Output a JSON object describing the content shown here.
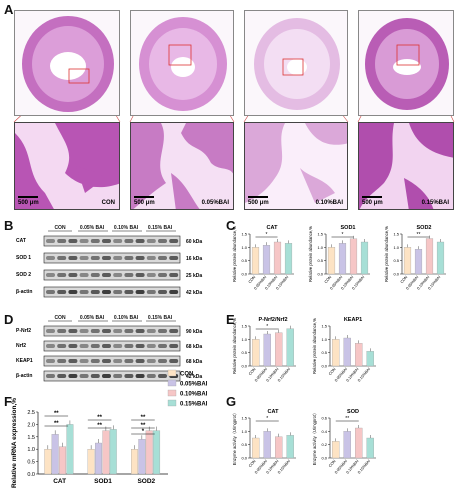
{
  "panels": {
    "A": "A",
    "B": "B",
    "C": "C",
    "D": "D",
    "E": "E",
    "F": "F",
    "G": "G"
  },
  "histology": {
    "scale": "500 μm",
    "groups": [
      "CON",
      "0.05%BAI",
      "0.10%BAI",
      "0.15%BAI"
    ],
    "colors": {
      "tissue": "#c46fc0",
      "light": "#f3def3",
      "dark": "#9a3f98"
    }
  },
  "blot_B": {
    "header": [
      "CON",
      "0.05% BAI",
      "0.10% BAI",
      "0.15% BAI"
    ],
    "rows": [
      {
        "name": "CAT",
        "kda": "60 kDa"
      },
      {
        "name": "SOD 1",
        "kda": "16 kDa"
      },
      {
        "name": "SOD 2",
        "kda": "25 kDa"
      },
      {
        "name": "β-actin",
        "kda": "42 kDa"
      }
    ]
  },
  "blot_D": {
    "header": [
      "CON",
      "0.05% BAI",
      "0.10% BAI",
      "0.15% BAI"
    ],
    "rows": [
      {
        "name": "P-Nrf2",
        "kda": "90 kDa"
      },
      {
        "name": "Nrf2",
        "kda": "68 kDa"
      },
      {
        "name": "KEAP1",
        "kda": "68 kDa"
      },
      {
        "name": "β-actin",
        "kda": "42 kDa"
      }
    ]
  },
  "legend": {
    "items": [
      "CON",
      "0.05%BAI",
      "0.10%BAI",
      "0.15%BAI"
    ]
  },
  "colors": {
    "con": "#fde3c4",
    "b05": "#c9c3e6",
    "b10": "#f6c6c6",
    "b15": "#a7dfd6"
  },
  "chart_data": [
    {
      "type": "bar",
      "panel": "C",
      "title": "CAT",
      "ylabel": "Relative protein abundance,%",
      "categories": [
        "CON",
        "0.05%BAI",
        "0.10%BAI",
        "0.15%BAI"
      ],
      "values": [
        1.0,
        1.08,
        1.2,
        1.15
      ],
      "ylim": [
        0,
        1.5
      ],
      "yticks": [
        "0.0",
        "0.5",
        "1.0",
        "1.5"
      ],
      "sig": [
        "*"
      ]
    },
    {
      "type": "bar",
      "panel": "C",
      "title": "SOD1",
      "ylabel": "Relative protein abundance,%",
      "categories": [
        "CON",
        "0.05%BAI",
        "0.10%BAI",
        "0.15%BAI"
      ],
      "values": [
        1.0,
        1.15,
        1.32,
        1.2
      ],
      "ylim": [
        0,
        1.5
      ],
      "yticks": [
        "0.0",
        "0.5",
        "1.0",
        "1.5"
      ],
      "sig": [
        "*"
      ]
    },
    {
      "type": "bar",
      "panel": "C",
      "title": "SOD2",
      "ylabel": "Relative protein abundance,%",
      "categories": [
        "CON",
        "0.05%BAI",
        "0.10%BAI",
        "0.15%BAI"
      ],
      "values": [
        1.0,
        0.93,
        1.33,
        1.2
      ],
      "ylim": [
        0,
        1.5
      ],
      "yticks": [
        "0.0",
        "0.5",
        "1.0",
        "1.5"
      ],
      "sig": [
        "**"
      ]
    },
    {
      "type": "bar",
      "panel": "E",
      "title": "P-Nrf2/Nrf2",
      "ylabel": "Relative protein abundance,%",
      "categories": [
        "CON",
        "0.05%BAI",
        "0.10%BAI",
        "0.15%BAI"
      ],
      "values": [
        1.0,
        1.2,
        1.25,
        1.4
      ],
      "ylim": [
        0,
        1.5
      ],
      "yticks": [
        "0.0",
        "0.5",
        "1.0",
        "1.5"
      ],
      "sig": [
        "*"
      ]
    },
    {
      "type": "bar",
      "panel": "E",
      "title": "KEAP1",
      "ylabel": "Relative protein abundance,%",
      "categories": [
        "CON",
        "0.05%BAI",
        "0.10%BAI",
        "0.15%BAI"
      ],
      "values": [
        1.0,
        1.05,
        0.85,
        0.55
      ],
      "ylim": [
        0,
        1.5
      ],
      "yticks": [
        "0.0",
        "0.5",
        "1.0",
        "1.5"
      ],
      "sig": []
    },
    {
      "type": "bar",
      "panel": "F",
      "title": "",
      "ylabel": "Relative mRNA expression,%",
      "categories": [
        "CAT",
        "SOD1",
        "SOD2"
      ],
      "series": [
        {
          "name": "CON",
          "values": [
            1.0,
            1.0,
            1.0
          ]
        },
        {
          "name": "0.05%BAI",
          "values": [
            1.6,
            1.25,
            1.4
          ]
        },
        {
          "name": "0.10%BAI",
          "values": [
            1.1,
            1.75,
            1.75
          ]
        },
        {
          "name": "0.15%BAI",
          "values": [
            2.0,
            1.8,
            1.75
          ]
        }
      ],
      "ylim": [
        0,
        2.5
      ],
      "yticks": [
        "0.0",
        "0.5",
        "1.0",
        "1.5",
        "2.0",
        "2.5"
      ],
      "sig": [
        "**",
        "**",
        "**",
        "**",
        "*",
        "**",
        "**"
      ]
    },
    {
      "type": "bar",
      "panel": "G",
      "title": "CAT",
      "ylabel": "Enzyme activity（U/mgprot）",
      "categories": [
        "CON",
        "0.05%BAI",
        "0.10%BAI",
        "0.15%BAI"
      ],
      "values": [
        0.75,
        1.0,
        0.8,
        0.85
      ],
      "ylim": [
        0,
        1.5
      ],
      "yticks": [
        "0.0",
        "0.5",
        "1.0",
        "1.5"
      ],
      "sig": [
        "*"
      ]
    },
    {
      "type": "bar",
      "panel": "G",
      "title": "SOD",
      "ylabel": "Enzyme activity（U/mgprot）",
      "categories": [
        "CON",
        "0.05%BAI",
        "0.10%BAI",
        "0.15%BAI"
      ],
      "values": [
        0.25,
        0.4,
        0.45,
        0.3
      ],
      "ylim": [
        0,
        0.6
      ],
      "yticks": [
        "0.0",
        "0.2",
        "0.4",
        "0.6"
      ],
      "sig": [
        "**"
      ]
    }
  ]
}
